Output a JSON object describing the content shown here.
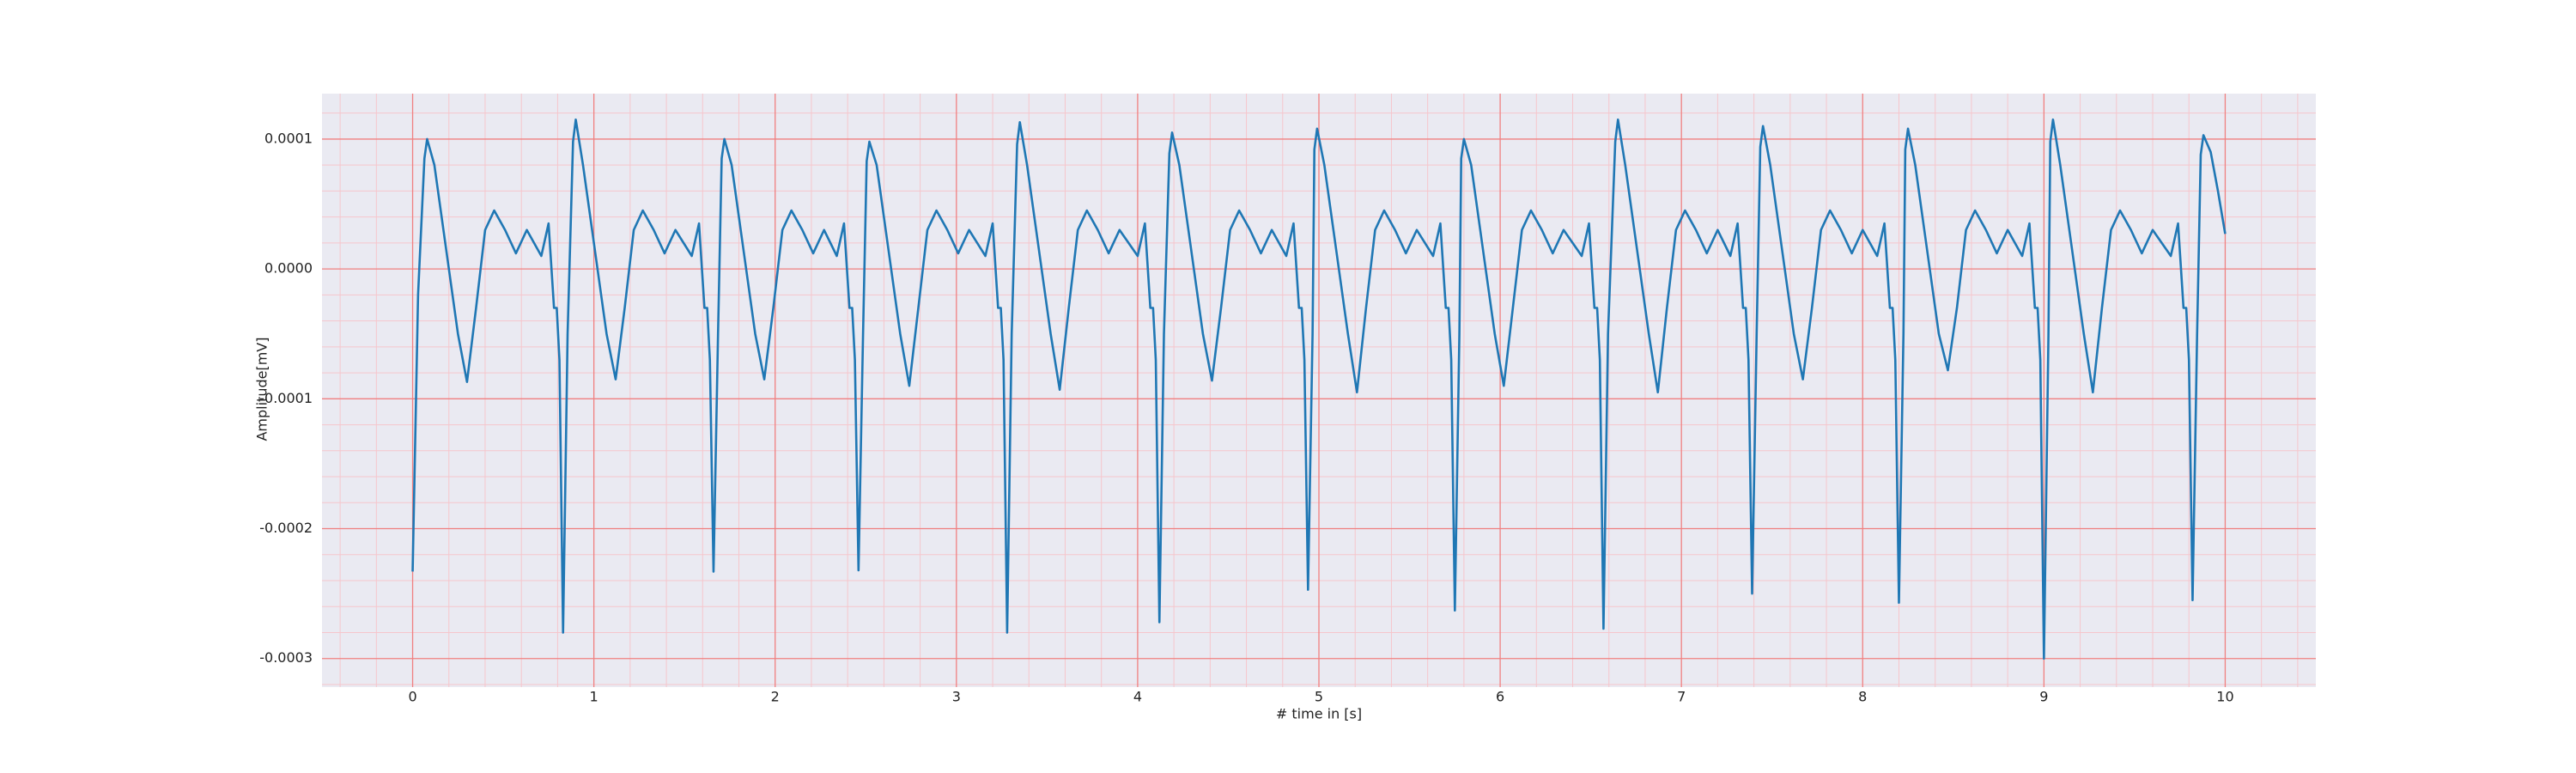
{
  "chart_data": {
    "type": "line",
    "xlabel": "# time in [s]",
    "ylabel": "Amplitude[mV]",
    "color": "#1f77b4",
    "background": "#eaeaf2",
    "grid": true,
    "grid_color": "#f08080",
    "minor_grid": true,
    "minor_grid_color": "#f6c6cc",
    "xlim": [
      -0.5,
      10.5
    ],
    "xticks": [
      0,
      1,
      2,
      3,
      4,
      5,
      6,
      7,
      8,
      9,
      10
    ],
    "ylim": [
      -0.000322,
      0.000135
    ],
    "yticks": [
      -0.0003,
      -0.0002,
      -0.0001,
      {
        "value": 0,
        "label": "0.0000"
      },
      0.0001
    ],
    "x": [
      0,
      0.03,
      0.065,
      0.08,
      0.12,
      0.18,
      0.25,
      0.3,
      0.35,
      0.4,
      0.45,
      0.51,
      0.57,
      0.63,
      0.71,
      0.75,
      0.78,
      0.795,
      0.81,
      0.83,
      0.855,
      0.885,
      0.9,
      0.94,
      1.0,
      1.07,
      1.12,
      1.17,
      1.22,
      1.27,
      1.33,
      1.39,
      1.45,
      1.54,
      1.58,
      1.61,
      1.625,
      1.64,
      1.66,
      1.685,
      1.705,
      1.72,
      1.76,
      1.82,
      1.89,
      1.94,
      1.99,
      2.04,
      2.09,
      2.15,
      2.21,
      2.27,
      2.34,
      2.38,
      2.41,
      2.425,
      2.44,
      2.46,
      2.485,
      2.505,
      2.52,
      2.56,
      2.62,
      2.69,
      2.74,
      2.79,
      2.84,
      2.89,
      2.95,
      3.01,
      3.07,
      3.16,
      3.2,
      3.23,
      3.245,
      3.26,
      3.28,
      3.305,
      3.335,
      3.35,
      3.39,
      3.45,
      3.52,
      3.57,
      3.62,
      3.67,
      3.72,
      3.78,
      3.84,
      3.9,
      4.0,
      4.04,
      4.07,
      4.085,
      4.1,
      4.12,
      4.145,
      4.175,
      4.19,
      4.23,
      4.29,
      4.36,
      4.41,
      4.46,
      4.51,
      4.56,
      4.62,
      4.68,
      4.74,
      4.82,
      4.86,
      4.89,
      4.905,
      4.92,
      4.94,
      4.965,
      4.975,
      4.99,
      5.03,
      5.09,
      5.16,
      5.21,
      5.26,
      5.31,
      5.36,
      5.42,
      5.48,
      5.54,
      5.63,
      5.67,
      5.7,
      5.715,
      5.73,
      5.75,
      5.775,
      5.785,
      5.8,
      5.84,
      5.9,
      5.97,
      6.02,
      6.07,
      6.12,
      6.17,
      6.23,
      6.29,
      6.35,
      6.45,
      6.49,
      6.52,
      6.535,
      6.55,
      6.57,
      6.595,
      6.635,
      6.65,
      6.69,
      6.75,
      6.82,
      6.87,
      6.92,
      6.97,
      7.02,
      7.08,
      7.14,
      7.2,
      7.27,
      7.31,
      7.34,
      7.355,
      7.37,
      7.39,
      7.415,
      7.435,
      7.45,
      7.49,
      7.55,
      7.62,
      7.67,
      7.72,
      7.77,
      7.82,
      7.88,
      7.94,
      8.0,
      8.08,
      8.12,
      8.15,
      8.165,
      8.18,
      8.2,
      8.225,
      8.235,
      8.25,
      8.29,
      8.35,
      8.42,
      8.47,
      8.52,
      8.57,
      8.62,
      8.68,
      8.74,
      8.8,
      8.88,
      8.92,
      8.95,
      8.965,
      8.98,
      9.0,
      9.025,
      9.035,
      9.05,
      9.09,
      9.15,
      9.22,
      9.27,
      9.32,
      9.37,
      9.42,
      9.48,
      9.54,
      9.6,
      9.7,
      9.74,
      9.77,
      9.785,
      9.8,
      9.82,
      9.845,
      9.865,
      9.88,
      9.92,
      9.96,
      10.0
    ],
    "values": [
      -0.000233,
      -2e-05,
      8.5e-05,
      0.0001,
      8e-05,
      2e-05,
      -5e-05,
      -8.7e-05,
      -3e-05,
      3e-05,
      4.5e-05,
      3e-05,
      1.2e-05,
      3e-05,
      1e-05,
      3.5e-05,
      -3e-05,
      -3e-05,
      -7e-05,
      -0.00028,
      -5e-05,
      9.8e-05,
      0.000115,
      8e-05,
      2e-05,
      -5e-05,
      -8.5e-05,
      -3e-05,
      3e-05,
      4.5e-05,
      3e-05,
      1.2e-05,
      3e-05,
      1e-05,
      3.5e-05,
      -3e-05,
      -3e-05,
      -7e-05,
      -0.000233,
      -5e-05,
      8.5e-05,
      0.0001,
      8e-05,
      2e-05,
      -5e-05,
      -8.5e-05,
      -3e-05,
      3e-05,
      4.5e-05,
      3e-05,
      1.2e-05,
      3e-05,
      1e-05,
      3.5e-05,
      -3e-05,
      -3e-05,
      -7e-05,
      -0.000232,
      -5e-05,
      8.3e-05,
      9.8e-05,
      8e-05,
      2e-05,
      -5e-05,
      -9e-05,
      -3e-05,
      3e-05,
      4.5e-05,
      3e-05,
      1.2e-05,
      3e-05,
      1e-05,
      3.5e-05,
      -3e-05,
      -3e-05,
      -7e-05,
      -0.00028,
      -5e-05,
      9.6e-05,
      0.000113,
      8e-05,
      2e-05,
      -5e-05,
      -9.3e-05,
      -3e-05,
      3e-05,
      4.5e-05,
      3e-05,
      1.2e-05,
      3e-05,
      1e-05,
      3.5e-05,
      -3e-05,
      -3e-05,
      -7e-05,
      -0.000272,
      -5e-05,
      8.9e-05,
      0.000105,
      8e-05,
      2e-05,
      -5e-05,
      -8.6e-05,
      -3e-05,
      3e-05,
      4.5e-05,
      3e-05,
      1.2e-05,
      3e-05,
      1e-05,
      3.5e-05,
      -3e-05,
      -3e-05,
      -7e-05,
      -0.000247,
      -5e-05,
      9.2e-05,
      0.000108,
      8e-05,
      2e-05,
      -5e-05,
      -9.5e-05,
      -3e-05,
      3e-05,
      4.5e-05,
      3e-05,
      1.2e-05,
      3e-05,
      1e-05,
      3.5e-05,
      -3e-05,
      -3e-05,
      -7e-05,
      -0.000263,
      -5e-05,
      8.5e-05,
      0.0001,
      8e-05,
      2e-05,
      -5e-05,
      -9e-05,
      -3e-05,
      3e-05,
      4.5e-05,
      3e-05,
      1.2e-05,
      3e-05,
      1e-05,
      3.5e-05,
      -3e-05,
      -3e-05,
      -7e-05,
      -0.000277,
      -5e-05,
      9.8e-05,
      0.000115,
      8e-05,
      2e-05,
      -5e-05,
      -9.5e-05,
      -3e-05,
      3e-05,
      4.5e-05,
      3e-05,
      1.2e-05,
      3e-05,
      1e-05,
      3.5e-05,
      -3e-05,
      -3e-05,
      -7e-05,
      -0.00025,
      -5e-05,
      9.4e-05,
      0.00011,
      8e-05,
      2e-05,
      -5e-05,
      -8.5e-05,
      -3e-05,
      3e-05,
      4.5e-05,
      3e-05,
      1.2e-05,
      3e-05,
      1e-05,
      3.5e-05,
      -3e-05,
      -3e-05,
      -7e-05,
      -0.000257,
      -5e-05,
      9.2e-05,
      0.000108,
      8e-05,
      2e-05,
      -5e-05,
      -7.8e-05,
      -3e-05,
      3e-05,
      4.5e-05,
      3e-05,
      1.2e-05,
      3e-05,
      1e-05,
      3.5e-05,
      -3e-05,
      -3e-05,
      -7e-05,
      -0.0003,
      -5e-05,
      9.8e-05,
      0.000115,
      8e-05,
      2e-05,
      -5e-05,
      -9.5e-05,
      -3e-05,
      3e-05,
      4.5e-05,
      3e-05,
      1.2e-05,
      3e-05,
      1e-05,
      3.5e-05,
      -3e-05,
      -3e-05,
      -7e-05,
      -0.000255,
      -5e-05,
      8.8e-05,
      0.000103,
      9e-05,
      6e-05,
      2.7e-05
    ]
  }
}
